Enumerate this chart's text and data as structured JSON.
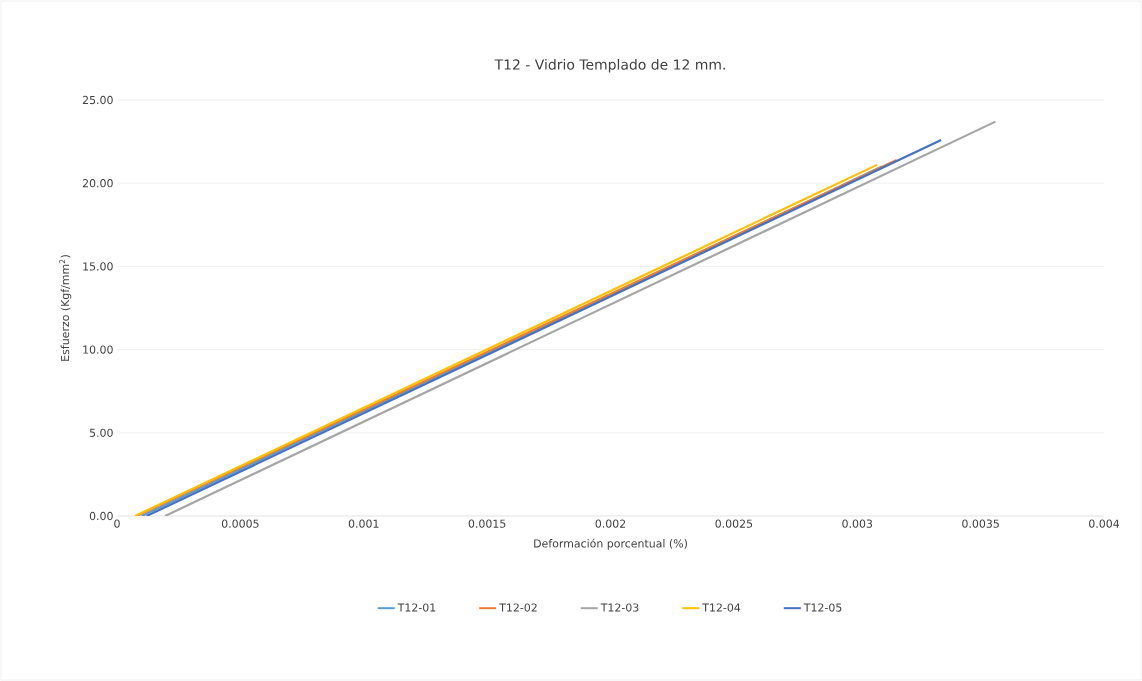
{
  "chart_data": {
    "type": "line",
    "title": "T12 - Vidrio Templado de 12 mm.",
    "xlabel": "Deformación porcentual (%)",
    "ylabel": "Esfuerzo (Kgf/mm$^{2}$)",
    "series": [
      {
        "name": "T12-01",
        "color": "#5b9bd5",
        "x": [
          0.0001,
          0.0031
        ],
        "values": [
          0,
          21.0
        ]
      },
      {
        "name": "T12-02",
        "color": "#ed7d31",
        "x": [
          8e-05,
          0.00316
        ],
        "values": [
          0,
          21.4
        ]
      },
      {
        "name": "T12-03",
        "color": "#a5a5a5",
        "x": [
          0.000195,
          0.00356
        ],
        "values": [
          0,
          23.7
        ]
      },
      {
        "name": "T12-04",
        "color": "#ffc000",
        "x": [
          7.3e-05,
          0.00308
        ],
        "values": [
          0,
          21.1
        ]
      },
      {
        "name": "T12-05",
        "color": "#4472c4",
        "x": [
          0.00012,
          0.00334
        ],
        "values": [
          0,
          22.6
        ]
      }
    ],
    "xlim": [
      0,
      0.004
    ],
    "xticks": [
      0,
      0.0005,
      0.001,
      0.0015,
      0.002,
      0.0025,
      0.003,
      0.0035,
      0.004
    ],
    "ylim": [
      0,
      25
    ],
    "yticks": [
      {
        "value": 0,
        "label": "0.00"
      },
      {
        "value": 5,
        "label": "5.00"
      },
      {
        "value": 10,
        "label": "10.00"
      },
      {
        "value": 15,
        "label": "15.00"
      },
      {
        "value": 20,
        "label": "20.00"
      },
      {
        "value": 25,
        "label": "25.00"
      }
    ],
    "grid": "y",
    "legend": "bottom",
    "marker": "none",
    "line_style": "solid"
  }
}
